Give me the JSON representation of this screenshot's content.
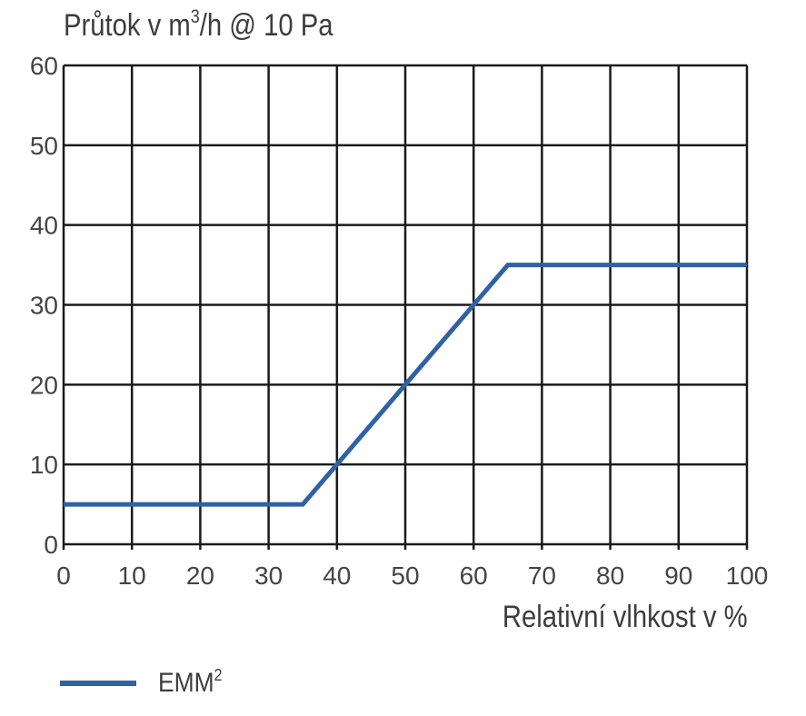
{
  "chart_data": {
    "type": "line",
    "title": "",
    "ylabel": {
      "main": "Průtok v m",
      "sup": "3",
      "rest": "/h @ 10 Pa"
    },
    "xlabel": "Relativní vlhkost v %",
    "xlim": [
      0,
      100
    ],
    "ylim": [
      0,
      60
    ],
    "xticks": [
      0,
      10,
      20,
      30,
      40,
      50,
      60,
      70,
      80,
      90,
      100
    ],
    "yticks": [
      0,
      10,
      20,
      30,
      40,
      50,
      60
    ],
    "grid": true,
    "legend_position": "bottom-left",
    "series": [
      {
        "name": {
          "main": "EMM",
          "sup": "2"
        },
        "color": "#2f62a5",
        "x": [
          0,
          35,
          65,
          100
        ],
        "y": [
          5,
          5,
          35,
          35
        ]
      }
    ]
  }
}
